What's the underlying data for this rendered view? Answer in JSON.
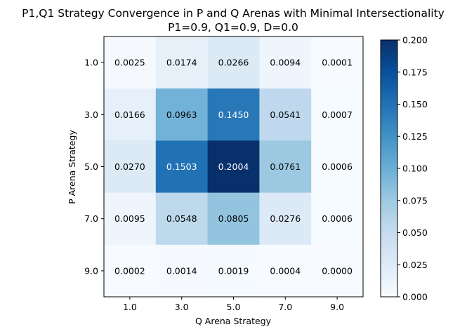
{
  "chart_data": {
    "type": "heatmap",
    "title_line1": "P1,Q1 Strategy Convergence in P and Q Arenas with Minimal Intersectionality",
    "title_line2": "P1=0.9, Q1=0.9, D=0.0",
    "xlabel": "Q Arena Strategy",
    "ylabel": "P Arena Strategy",
    "x_categories": [
      "1.0",
      "3.0",
      "5.0",
      "7.0",
      "9.0"
    ],
    "y_categories": [
      "1.0",
      "3.0",
      "5.0",
      "7.0",
      "9.0"
    ],
    "values": [
      [
        0.0025,
        0.0174,
        0.0266,
        0.0094,
        0.0001
      ],
      [
        0.0166,
        0.0963,
        0.145,
        0.0541,
        0.0007
      ],
      [
        0.027,
        0.1503,
        0.2004,
        0.0761,
        0.0006
      ],
      [
        0.0095,
        0.0548,
        0.0805,
        0.0276,
        0.0006
      ],
      [
        0.0002,
        0.0014,
        0.0019,
        0.0004,
        0.0
      ]
    ],
    "cell_labels": [
      [
        "0.0025",
        "0.0174",
        "0.0266",
        "0.0094",
        "0.0001"
      ],
      [
        "0.0166",
        "0.0963",
        "0.1450",
        "0.0541",
        "0.0007"
      ],
      [
        "0.0270",
        "0.1503",
        "0.2004",
        "0.0761",
        "0.0006"
      ],
      [
        "0.0095",
        "0.0548",
        "0.0805",
        "0.0276",
        "0.0006"
      ],
      [
        "0.0002",
        "0.0014",
        "0.0019",
        "0.0004",
        "0.0000"
      ]
    ],
    "colormap": "Blues",
    "vmin": 0.0,
    "vmax": 0.2,
    "colorbar_ticks": [
      "0.000",
      "0.025",
      "0.050",
      "0.075",
      "0.100",
      "0.125",
      "0.150",
      "0.175",
      "0.200"
    ],
    "colorbar_tick_values": [
      0.0,
      0.025,
      0.05,
      0.075,
      0.1,
      0.125,
      0.15,
      0.175,
      0.2
    ],
    "legend_position": "right"
  }
}
